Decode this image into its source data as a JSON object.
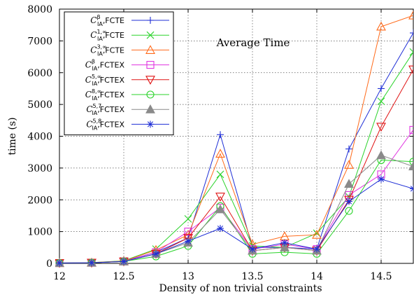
{
  "chart_data": {
    "type": "line",
    "title": "Average Time",
    "xlabel": "Density of non trivial constraints",
    "ylabel": "time (s)",
    "xlim": [
      12,
      14.75
    ],
    "ylim": [
      0,
      8000
    ],
    "xticks": [
      "12",
      "12.5",
      "13",
      "13.5",
      "14",
      "14.5"
    ],
    "xtick_values": [
      12,
      12.5,
      13,
      13.5,
      14,
      14.5
    ],
    "yticks": [
      "0",
      "1000",
      "2000",
      "3000",
      "4000",
      "5000",
      "6000",
      "7000",
      "8000"
    ],
    "ytick_values": [
      0,
      1000,
      2000,
      3000,
      4000,
      5000,
      6000,
      7000,
      8000
    ],
    "grid": true,
    "legend_position": "top-left",
    "x": [
      12,
      12.25,
      12.5,
      12.75,
      13,
      13.25,
      13.5,
      13.75,
      14,
      14.25,
      14.5,
      14.75
    ],
    "series": [
      {
        "name": "FCTE",
        "legend_math": {
          "base": "C",
          "sub": "IA",
          "sup": "β"
        },
        "color": "#1f2fd6",
        "marker": "plus",
        "values": [
          10,
          20,
          70,
          350,
          800,
          4050,
          500,
          500,
          450,
          3600,
          5500,
          7250
        ]
      },
      {
        "name": "FCTE",
        "legend_math": {
          "base": "C",
          "sub": "IA",
          "sup": "1,∞"
        },
        "color": "#2bd32b",
        "marker": "x",
        "values": [
          10,
          25,
          80,
          450,
          1400,
          2800,
          550,
          500,
          950,
          2100,
          5100,
          6650
        ]
      },
      {
        "name": "FCTE",
        "legend_math": {
          "base": "C",
          "sub": "IA",
          "sup": "3,∞"
        },
        "color": "#ff6a1a",
        "marker": "triangle-up",
        "values": [
          10,
          25,
          70,
          420,
          900,
          3450,
          600,
          850,
          900,
          3100,
          7450,
          7800
        ]
      },
      {
        "name": "FCTEX",
        "legend_math": {
          "base": "C",
          "sub": "IA",
          "sup": "β"
        },
        "color": "#e033e0",
        "marker": "square",
        "values": [
          10,
          20,
          60,
          350,
          1000,
          1750,
          450,
          600,
          450,
          2150,
          2800,
          4200
        ]
      },
      {
        "name": "FCTEX",
        "legend_math": {
          "base": "C",
          "sub": "IA",
          "sup": "5,∞"
        },
        "color": "#e01515",
        "marker": "triangle-down",
        "values": [
          10,
          20,
          60,
          300,
          800,
          2100,
          400,
          500,
          400,
          2000,
          4300,
          6100
        ]
      },
      {
        "name": "FCTEX",
        "legend_math": {
          "base": "C",
          "sub": "IA",
          "sup": "8,∞"
        },
        "color": "#2bd32b",
        "marker": "circle",
        "values": [
          10,
          20,
          60,
          220,
          550,
          1800,
          300,
          350,
          300,
          1650,
          3250,
          3200
        ]
      },
      {
        "name": "FCTEX",
        "legend_math": {
          "base": "C",
          "sub": "IA",
          "sup": "5,7"
        },
        "color": "#8a8a8a",
        "marker": "triangle-filled",
        "values": [
          10,
          20,
          60,
          300,
          650,
          1700,
          400,
          500,
          400,
          2500,
          3400,
          3050
        ]
      },
      {
        "name": "FCTEX",
        "legend_math": {
          "base": "C",
          "sub": "IA",
          "sup": "5,8"
        },
        "color": "#1f2fd6",
        "marker": "asterisk",
        "values": [
          10,
          20,
          60,
          300,
          700,
          1100,
          450,
          650,
          450,
          1950,
          2650,
          2350
        ]
      }
    ]
  }
}
